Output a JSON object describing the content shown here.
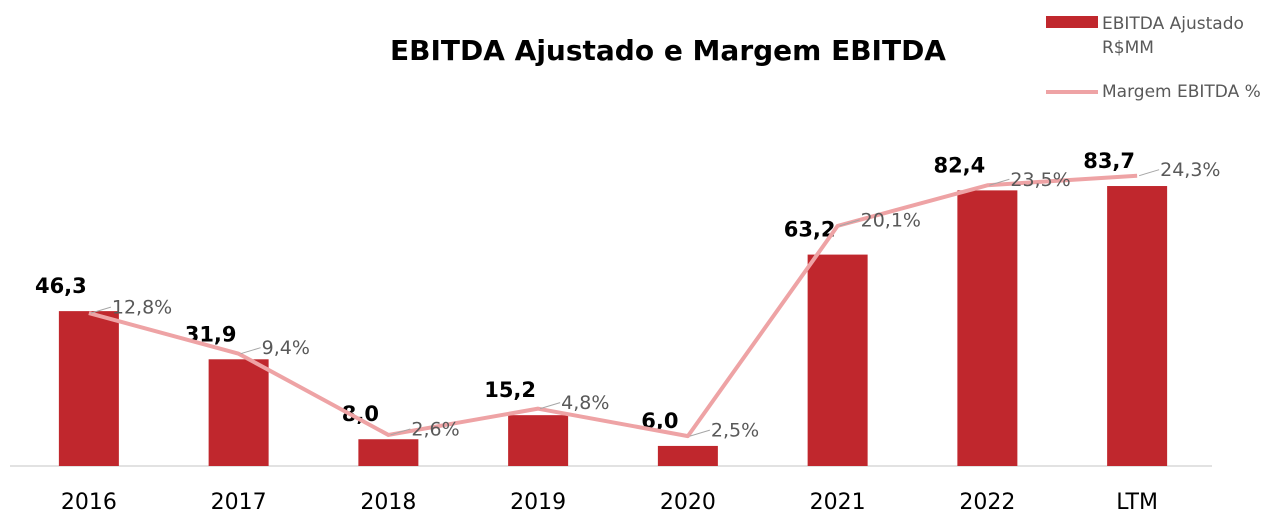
{
  "chart_data": {
    "type": "bar_line",
    "title": "EBITDA Ajustado e Margem EBITDA",
    "categories": [
      "2016",
      "2017",
      "2018",
      "2019",
      "2020",
      "2021",
      "2022",
      "LTM"
    ],
    "ylim": [
      0,
      100
    ],
    "y2lim": [
      0,
      28
    ],
    "legend": "top-right",
    "series": [
      {
        "name": "EBITDA Ajustado R$MM",
        "type": "bar",
        "color": "#c0272d",
        "values": [
          46.3,
          31.9,
          8.0,
          15.2,
          6.0,
          63.2,
          82.4,
          83.7
        ],
        "value_labels": [
          "46,3",
          "31,9",
          "8,0",
          "15,2",
          "6,0",
          "63,2",
          "82,4",
          "83,7"
        ]
      },
      {
        "name": "Margem EBITDA %",
        "type": "line",
        "axis": "y2",
        "color": "#eea3a5",
        "values": [
          12.8,
          9.4,
          2.6,
          4.8,
          2.5,
          20.1,
          23.5,
          24.3
        ],
        "value_labels": [
          "12,8%",
          "9,4%",
          "2,6%",
          "4,8%",
          "2,5%",
          "20,1%",
          "23,5%",
          "24,3%"
        ]
      }
    ]
  }
}
